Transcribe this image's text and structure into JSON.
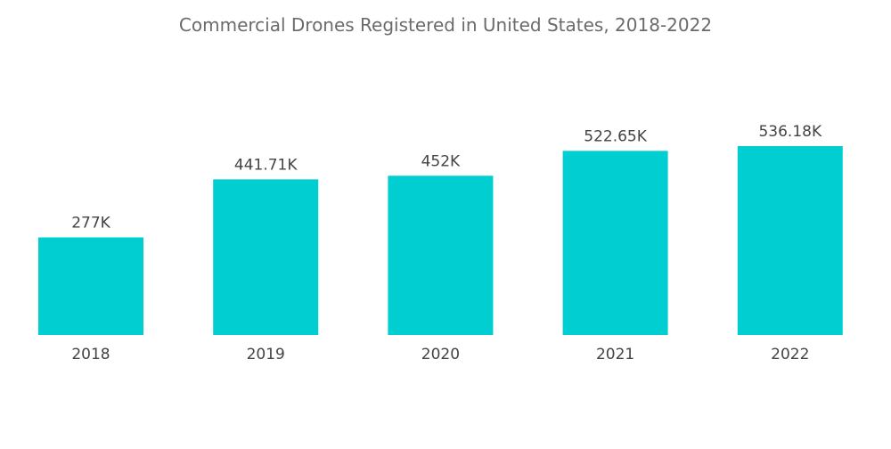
{
  "chart_data": {
    "type": "bar",
    "title": "Commercial Drones Registered in United States, 2018-2022",
    "categories": [
      "2018",
      "2019",
      "2020",
      "2021",
      "2022"
    ],
    "values": [
      277,
      441.71,
      452,
      522.65,
      536.18
    ],
    "data_labels": [
      "277K",
      "441.71K",
      "452K",
      "522.65K",
      "536.18K"
    ],
    "unit": "K",
    "xlabel": "",
    "ylabel": "",
    "grid": false,
    "y_axis_visible": false,
    "bar_color": "#00CED1"
  }
}
